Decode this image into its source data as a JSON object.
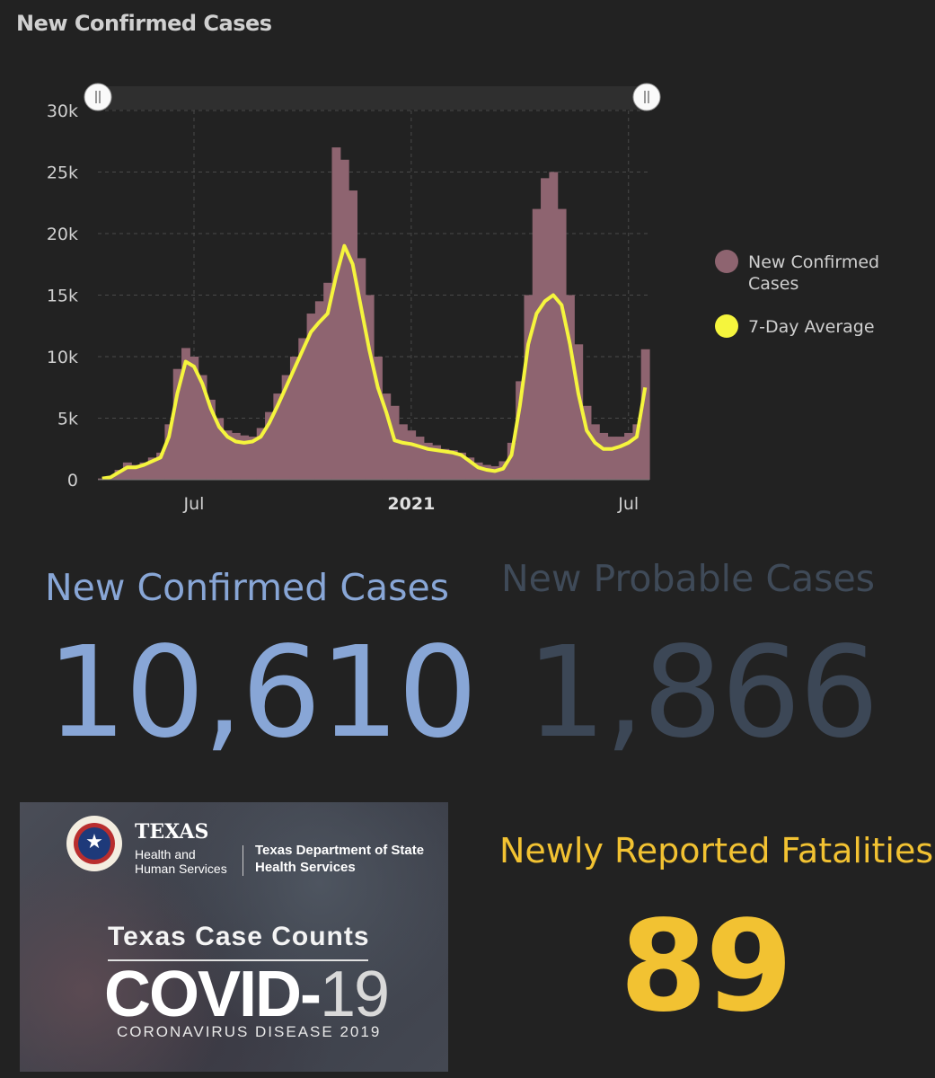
{
  "title": "New Confirmed Cases",
  "colors": {
    "bar": "#8e6470",
    "avg": "#f5f53d",
    "background": "#222222",
    "grid": "#4a4a4a",
    "slider": "#2f2f2f"
  },
  "chart_data": {
    "type": "bar",
    "title": "New Confirmed Cases",
    "ylim": [
      0,
      30000
    ],
    "yticks": [
      0,
      5000,
      10000,
      15000,
      20000,
      25000,
      30000
    ],
    "ytick_labels": [
      "0",
      "5k",
      "10k",
      "15k",
      "20k",
      "25k",
      "30k"
    ],
    "xticks": [
      {
        "label": "Jul",
        "week": 11,
        "bold": false
      },
      {
        "label": "2021",
        "week": 37,
        "bold": true
      },
      {
        "label": "Jul",
        "week": 63,
        "bold": false
      }
    ],
    "x_unit": "week index (weekly sample of daily data, approx.)",
    "series": [
      {
        "name": "New Confirmed Cases",
        "type": "bar",
        "values": [
          100,
          300,
          800,
          1400,
          1200,
          1400,
          1800,
          2200,
          4500,
          9000,
          10700,
          10000,
          8500,
          6500,
          5000,
          4000,
          3800,
          3600,
          3500,
          4200,
          5500,
          7000,
          8500,
          10000,
          11500,
          13500,
          14500,
          16000,
          27000,
          26000,
          23500,
          18000,
          15000,
          10000,
          7000,
          6000,
          4500,
          4000,
          3500,
          3000,
          2800,
          2500,
          2400,
          2200,
          1800,
          1400,
          1200,
          1100,
          1500,
          3000,
          8000,
          15000,
          22000,
          24500,
          25000,
          22000,
          15000,
          11000,
          6000,
          4500,
          3800,
          3500,
          3500,
          3800,
          4500,
          10600
        ]
      },
      {
        "name": "7-Day Average",
        "type": "line",
        "values": [
          100,
          200,
          600,
          1000,
          1000,
          1200,
          1500,
          1800,
          3500,
          7000,
          9600,
          9200,
          7800,
          5800,
          4300,
          3500,
          3100,
          3000,
          3100,
          3500,
          4600,
          6000,
          7500,
          9000,
          10500,
          12000,
          12800,
          13500,
          16500,
          19000,
          17500,
          14000,
          10500,
          7500,
          5500,
          3200,
          3000,
          2900,
          2700,
          2500,
          2400,
          2300,
          2200,
          2000,
          1500,
          1000,
          800,
          700,
          900,
          2000,
          6000,
          11000,
          13500,
          14500,
          15000,
          14200,
          11000,
          7000,
          4000,
          3000,
          2500,
          2500,
          2700,
          3000,
          3500,
          7500
        ]
      }
    ],
    "legend": [
      "New Confirmed Cases",
      "7-Day Average"
    ],
    "legend_position": "right",
    "grid": true
  },
  "stats": {
    "confirmed_label": "New Confirmed Cases",
    "confirmed_value": "10,610",
    "probable_label": "New Probable Cases",
    "probable_value": "1,866",
    "fatalities_label": "Newly Reported Fatalities",
    "fatalities_value": "89"
  },
  "banner": {
    "org1": "TEXAS",
    "org1_sub": "Health and Human Services",
    "org2": "Texas Department of State Health Services",
    "heading": "Texas Case Counts",
    "covid_main": "COVID-",
    "covid_num": "19",
    "disease": "CORONAVIRUS DISEASE 2019"
  }
}
